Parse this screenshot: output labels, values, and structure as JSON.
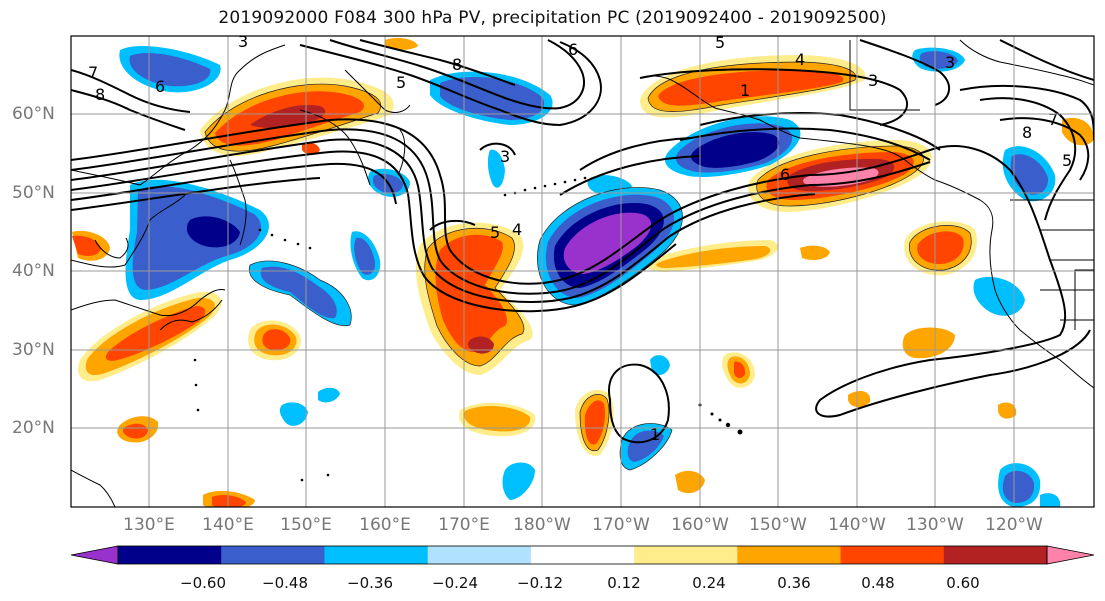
{
  "title": "2019092000 F084 300 hPa PV, precipitation PC (2019092400 - 2019092500)",
  "lat_labels": [
    "60°N",
    "50°N",
    "40°N",
    "30°N",
    "20°N"
  ],
  "lon_labels": [
    "130°E",
    "140°E",
    "150°E",
    "160°E",
    "170°E",
    "180°W",
    "170°W",
    "160°W",
    "150°W",
    "140°W",
    "130°W",
    "120°W"
  ],
  "contour_labels": [
    "3",
    "6",
    "7",
    "8",
    "5",
    "8",
    "6",
    "5",
    "4",
    "1",
    "3",
    "3",
    "7",
    "8",
    "5",
    "6",
    "5",
    "4",
    "3",
    "1"
  ],
  "colorbar": {
    "ticks": [
      "−0.60",
      "−0.48",
      "−0.36",
      "−0.24",
      "−0.12",
      "0.12",
      "0.24",
      "0.36",
      "0.48",
      "0.60"
    ],
    "colors": [
      "#9932cc",
      "#00008b",
      "#3a5fcd",
      "#00bfff",
      "#b0e2ff",
      "#ffffff",
      "#ffec8b",
      "#ffa500",
      "#ff4500",
      "#b22222",
      "#ff82ab"
    ]
  }
}
